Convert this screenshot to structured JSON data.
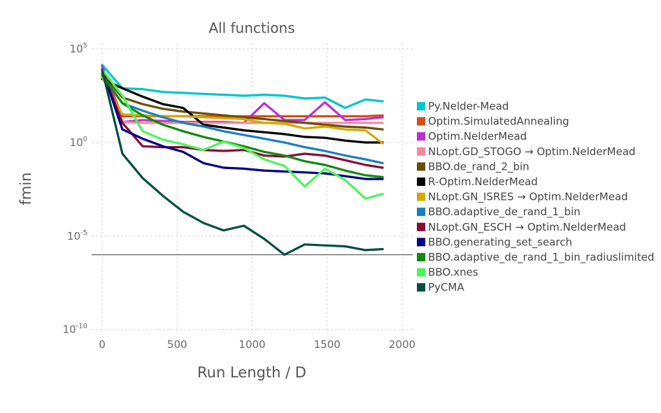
{
  "chart_data": {
    "type": "line",
    "title": "All functions",
    "xlabel": "Run Length / D",
    "ylabel": "fmin",
    "x_scale": "linear",
    "y_scale": "log10",
    "xlim": [
      -70,
      2070
    ],
    "ylim_log10": [
      -10.2,
      5.3
    ],
    "x_ticks": [
      0,
      500,
      1000,
      1500,
      2000
    ],
    "y_ticks": [
      {
        "base": "10",
        "exp": "5",
        "value": 5
      },
      {
        "base": "10",
        "exp": "0",
        "value": 0
      },
      {
        "base": "10",
        "exp": "-5",
        "value": -5
      },
      {
        "base": "10",
        "exp": "-10",
        "value": -10
      }
    ],
    "grid": true,
    "legend_placement": "right",
    "reference_line_log10": -6,
    "series": [
      {
        "name": "Py.Nelder-Mead",
        "color": "#00c5cd",
        "x": [
          0,
          135,
          270,
          405,
          540,
          675,
          810,
          945,
          1080,
          1215,
          1350,
          1485,
          1620,
          1755,
          1870
        ],
        "y": [
          4.15,
          2.9,
          2.85,
          2.7,
          2.65,
          2.6,
          2.55,
          2.5,
          2.55,
          2.5,
          2.35,
          2.4,
          1.85,
          2.3,
          2.2
        ]
      },
      {
        "name": "Optim.SimulatedAnnealing",
        "color": "#d2501e",
        "x": [
          0,
          135,
          270,
          405,
          540,
          675,
          810,
          945,
          1080,
          1215,
          1350,
          1485,
          1620,
          1755,
          1870
        ],
        "y": [
          4.05,
          1.4,
          1.4,
          1.4,
          1.4,
          1.4,
          1.4,
          1.4,
          1.4,
          1.4,
          1.4,
          1.4,
          1.4,
          1.4,
          1.45
        ]
      },
      {
        "name": "Optim.NelderMead",
        "color": "#bb2fd9",
        "x": [
          0,
          135,
          270,
          405,
          540,
          675,
          810,
          945,
          1080,
          1215,
          1350,
          1485,
          1620,
          1755,
          1870
        ],
        "y": [
          4.1,
          1.1,
          1.2,
          1.15,
          1.1,
          1.1,
          1.1,
          1.05,
          2.1,
          1.2,
          1.2,
          2.15,
          1.2,
          1.25,
          1.35
        ]
      },
      {
        "name": "NLopt.GD_STOGO → Optim.NelderMead",
        "color": "#f58a96",
        "x": [
          0,
          135,
          270,
          405,
          540,
          675,
          810,
          945,
          1080,
          1215,
          1350,
          1485,
          1620,
          1755,
          1870
        ],
        "y": [
          3.8,
          1.1,
          1.05,
          1.05,
          1.05,
          1.05,
          1.05,
          1.05,
          1.05,
          1.05,
          1.05,
          1.05,
          1.05,
          1.05,
          1.05
        ]
      },
      {
        "name": "BBO.de_rand_2_bin",
        "color": "#6b4e00",
        "x": [
          0,
          135,
          270,
          405,
          540,
          675,
          810,
          945,
          1080,
          1215,
          1350,
          1485,
          1620,
          1755,
          1870
        ],
        "y": [
          3.7,
          2.4,
          2.05,
          1.8,
          1.65,
          1.55,
          1.45,
          1.35,
          1.25,
          1.15,
          1.05,
          0.95,
          0.85,
          0.8,
          0.7
        ]
      },
      {
        "name": "R-Optim.NelderMead",
        "color": "#000000",
        "x": [
          0,
          135,
          270,
          405,
          540,
          675,
          810,
          945,
          1080,
          1215,
          1350,
          1485,
          1620,
          1755,
          1870
        ],
        "y": [
          3.4,
          2.9,
          2.45,
          2.05,
          1.85,
          0.95,
          0.8,
          0.65,
          0.55,
          0.45,
          0.3,
          0.25,
          0.1,
          0.0,
          0.0
        ]
      },
      {
        "name": "NLopt.GN_ISRES → Optim.NelderMead",
        "color": "#d4a800",
        "x": [
          0,
          135,
          270,
          405,
          540,
          675,
          810,
          945,
          1080,
          1215,
          1350,
          1485,
          1620,
          1755,
          1870
        ],
        "y": [
          3.5,
          1.5,
          1.45,
          1.4,
          1.4,
          1.35,
          1.3,
          1.25,
          1.05,
          1.0,
          0.75,
          0.85,
          0.7,
          0.65,
          -0.05
        ]
      },
      {
        "name": "BBO.adaptive_de_rand_1_bin",
        "color": "#1a7fc1",
        "x": [
          0,
          135,
          270,
          405,
          540,
          675,
          810,
          945,
          1080,
          1215,
          1350,
          1485,
          1620,
          1755,
          1870
        ],
        "y": [
          3.6,
          2.1,
          1.7,
          1.35,
          1.05,
          0.85,
          0.6,
          0.4,
          0.2,
          0.0,
          -0.25,
          -0.45,
          -0.7,
          -0.9,
          -1.1
        ]
      },
      {
        "name": "NLopt.GN_ESCH → Optim.NelderMead",
        "color": "#8b0a3a",
        "x": [
          0,
          135,
          270,
          405,
          540,
          675,
          810,
          945,
          1080,
          1215,
          1350,
          1485,
          1620,
          1755,
          1870
        ],
        "y": [
          3.9,
          1.05,
          -0.2,
          -0.25,
          -0.25,
          -0.4,
          -0.45,
          -0.4,
          -0.7,
          -0.75,
          -0.6,
          -0.7,
          -0.95,
          -1.2,
          -1.35
        ]
      },
      {
        "name": "BBO.generating_set_search",
        "color": "#00008b",
        "x": [
          0,
          135,
          270,
          405,
          540,
          675,
          810,
          945,
          1080,
          1215,
          1350,
          1485,
          1620,
          1755,
          1870
        ],
        "y": [
          3.9,
          0.7,
          0.2,
          -0.2,
          -0.5,
          -1.1,
          -1.35,
          -1.4,
          -1.5,
          -1.55,
          -1.6,
          -1.65,
          -1.8,
          -1.95,
          -1.95
        ]
      },
      {
        "name": "BBO.adaptive_de_rand_1_bin_radiuslimited",
        "color": "#0f8c0f",
        "x": [
          0,
          135,
          270,
          405,
          540,
          675,
          810,
          945,
          1080,
          1215,
          1350,
          1485,
          1620,
          1755,
          1870
        ],
        "y": [
          3.6,
          2.1,
          1.45,
          0.95,
          0.6,
          0.3,
          0.05,
          -0.2,
          -0.5,
          -0.7,
          -1.0,
          -1.2,
          -1.5,
          -1.75,
          -1.85
        ]
      },
      {
        "name": "BBO.xnes",
        "color": "#4cf55a",
        "x": [
          0,
          135,
          270,
          405,
          540,
          675,
          810,
          945,
          1080,
          1215,
          1350,
          1485,
          1620,
          1755,
          1870
        ],
        "y": [
          3.9,
          2.5,
          0.6,
          0.15,
          -0.1,
          -0.4,
          0.05,
          -0.3,
          -0.9,
          -1.25,
          -2.35,
          -1.4,
          -2.0,
          -3.0,
          -2.75
        ]
      },
      {
        "name": "PyCMA",
        "color": "#004f3f",
        "x": [
          0,
          135,
          270,
          405,
          540,
          675,
          810,
          945,
          1080,
          1215,
          1350,
          1485,
          1620,
          1755,
          1870
        ],
        "y": [
          3.9,
          -0.6,
          -1.9,
          -2.85,
          -3.7,
          -4.3,
          -4.7,
          -4.45,
          -5.15,
          -6.0,
          -5.45,
          -5.5,
          -5.55,
          -5.75,
          -5.7
        ]
      }
    ]
  }
}
